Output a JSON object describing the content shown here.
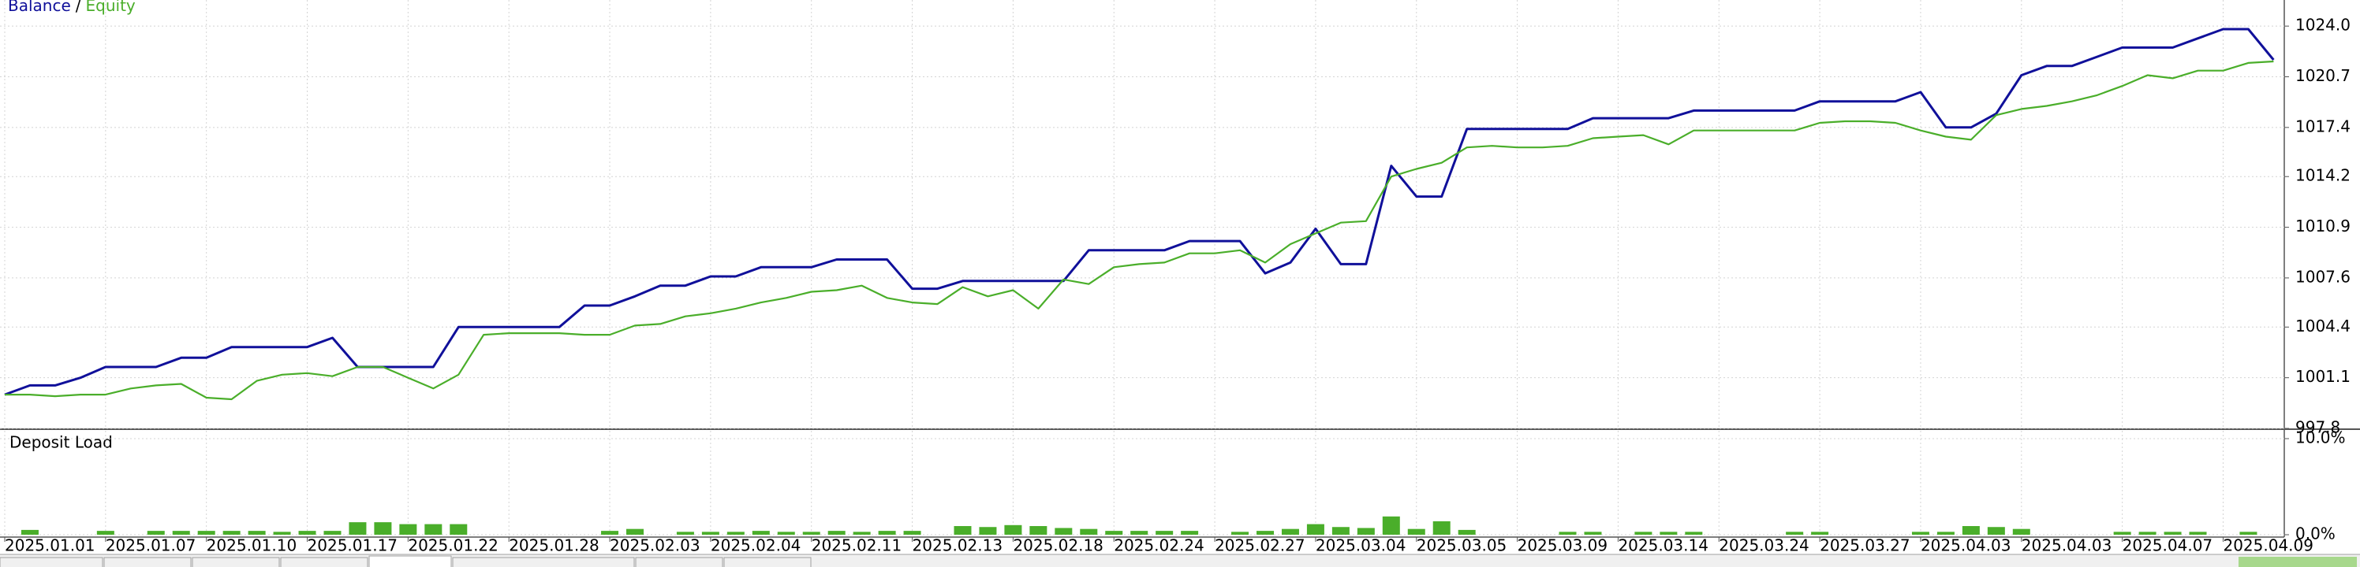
{
  "chart_data": [
    {
      "type": "line",
      "legend_separator": "/",
      "categories": [
        "2025.01.01",
        null,
        null,
        null,
        "2025.01.07",
        null,
        null,
        null,
        "2025.01.10",
        null,
        null,
        null,
        "2025.01.17",
        null,
        null,
        null,
        "2025.01.22",
        null,
        null,
        null,
        "2025.01.28",
        null,
        null,
        null,
        "2025.02.03",
        null,
        null,
        null,
        "2025.02.04",
        null,
        null,
        null,
        "2025.02.11",
        null,
        null,
        null,
        "2025.02.13",
        null,
        null,
        null,
        "2025.02.18",
        null,
        null,
        null,
        "2025.02.24",
        null,
        null,
        null,
        "2025.02.27",
        null,
        null,
        null,
        "2025.03.04",
        null,
        null,
        null,
        "2025.03.05",
        null,
        null,
        null,
        "2025.03.09",
        null,
        null,
        null,
        "2025.03.14",
        null,
        null,
        null,
        "2025.03.24",
        null,
        null,
        null,
        "2025.03.27",
        null,
        null,
        null,
        "2025.04.03",
        null,
        null,
        null,
        "2025.04.03",
        null,
        null,
        null,
        "2025.04.07",
        null,
        null,
        null,
        "2025.04.09",
        null,
        null
      ],
      "series": [
        {
          "name": "Balance",
          "color": "#10109a",
          "values": [
            1000.0,
            1000.6,
            1000.6,
            1001.1,
            1001.8,
            1001.8,
            1001.8,
            1002.4,
            1002.4,
            1003.1,
            1003.1,
            1003.1,
            1003.1,
            1003.7,
            1001.8,
            1001.8,
            1001.8,
            1001.8,
            1004.4,
            1004.4,
            1004.4,
            1004.4,
            1004.4,
            1005.8,
            1005.8,
            1006.4,
            1007.1,
            1007.1,
            1007.7,
            1007.7,
            1008.3,
            1008.3,
            1008.3,
            1008.8,
            1008.8,
            1008.8,
            1006.9,
            1006.9,
            1007.4,
            1007.4,
            1007.4,
            1007.4,
            1007.4,
            1009.4,
            1009.4,
            1009.4,
            1009.4,
            1010.0,
            1010.0,
            1010.0,
            1007.9,
            1008.6,
            1010.8,
            1008.5,
            1008.5,
            1014.9,
            1012.9,
            1012.9,
            1017.3,
            1017.3,
            1017.3,
            1017.3,
            1017.3,
            1018.0,
            1018.0,
            1018.0,
            1018.0,
            1018.5,
            1018.5,
            1018.5,
            1018.5,
            1018.5,
            1019.1,
            1019.1,
            1019.1,
            1019.1,
            1019.7,
            1017.4,
            1017.4,
            1018.3,
            1020.8,
            1021.4,
            1021.4,
            1022.0,
            1022.6,
            1022.6,
            1022.6,
            1023.2,
            1023.8,
            1023.8,
            1021.8
          ]
        },
        {
          "name": "Equity",
          "color": "#4aae2a",
          "values": [
            1000.0,
            1000.0,
            999.9,
            1000.0,
            1000.0,
            1000.4,
            1000.6,
            1000.7,
            999.8,
            999.7,
            1000.9,
            1001.3,
            1001.4,
            1001.2,
            1001.8,
            1001.8,
            1001.1,
            1000.4,
            1001.3,
            1003.9,
            1004.0,
            1004.0,
            1004.0,
            1003.9,
            1003.9,
            1004.5,
            1004.6,
            1005.1,
            1005.3,
            1005.6,
            1006.0,
            1006.3,
            1006.7,
            1006.8,
            1007.1,
            1006.3,
            1006.0,
            1005.9,
            1007.0,
            1006.4,
            1006.8,
            1005.6,
            1007.5,
            1007.2,
            1008.3,
            1008.5,
            1008.6,
            1009.2,
            1009.2,
            1009.4,
            1008.6,
            1009.8,
            1010.5,
            1011.2,
            1011.3,
            1014.2,
            1014.7,
            1015.1,
            1016.1,
            1016.2,
            1016.1,
            1016.1,
            1016.2,
            1016.7,
            1016.8,
            1016.9,
            1016.3,
            1017.2,
            1017.2,
            1017.2,
            1017.2,
            1017.2,
            1017.7,
            1017.8,
            1017.8,
            1017.7,
            1017.2,
            1016.8,
            1016.6,
            1018.2,
            1018.6,
            1018.8,
            1019.1,
            1019.5,
            1020.1,
            1020.8,
            1020.6,
            1021.1,
            1021.1,
            1021.6,
            1021.7
          ]
        }
      ],
      "ylim": [
        997.8,
        1025.7
      ],
      "yticks": [
        997.8,
        1001.1,
        1004.4,
        1007.6,
        1010.9,
        1014.2,
        1017.4,
        1020.7,
        {
          "value": 1024,
          "label": "1024.0"
        }
      ],
      "grid": true
    },
    {
      "type": "bar",
      "title": "Deposit Load",
      "color": "#4aae2a",
      "values": [
        0,
        0.5,
        0,
        0,
        0.4,
        0,
        0.4,
        0.4,
        0.4,
        0.4,
        0.4,
        0.3,
        0.4,
        0.4,
        1.3,
        1.3,
        1.1,
        1.1,
        1.1,
        0,
        0,
        0,
        0,
        0,
        0.4,
        0.6,
        0,
        0.3,
        0.3,
        0.3,
        0.4,
        0.3,
        0.3,
        0.4,
        0.3,
        0.4,
        0.4,
        0,
        0.9,
        0.8,
        1.0,
        0.9,
        0.7,
        0.6,
        0.4,
        0.4,
        0.4,
        0.4,
        0,
        0.3,
        0.4,
        0.6,
        1.1,
        0.8,
        0.7,
        1.9,
        0.6,
        1.4,
        0.5,
        0,
        0,
        0,
        0.3,
        0.3,
        0,
        0.3,
        0.3,
        0.3,
        0,
        0,
        0,
        0.3,
        0.3,
        0,
        0,
        0,
        0.3,
        0.3,
        0.9,
        0.8,
        0.6,
        0,
        0,
        0,
        0.3,
        0.3,
        0.3,
        0.3,
        0,
        0.3,
        0
      ],
      "ylim": [
        0,
        10
      ],
      "yticks": [
        {
          "value": 0,
          "label": "0.0%"
        },
        {
          "value": 10,
          "label": "10.0%"
        }
      ],
      "grid": true
    }
  ]
}
